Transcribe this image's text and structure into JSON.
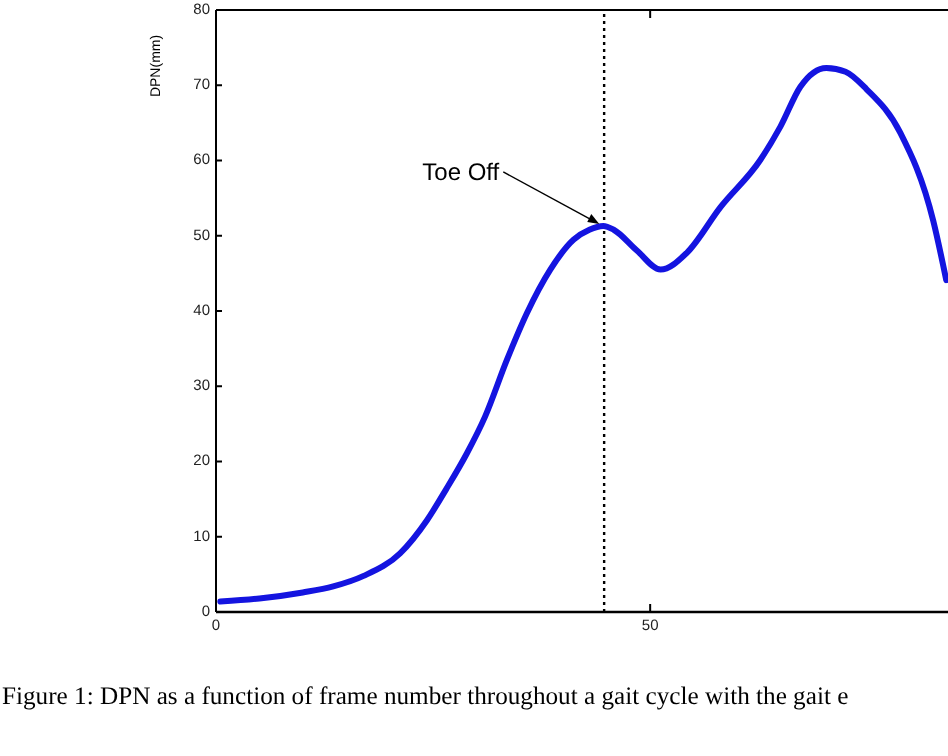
{
  "chart_data": {
    "type": "line",
    "ylabel": "DPN(mm)",
    "xlim": [
      0,
      84.3
    ],
    "ylim": [
      0,
      80
    ],
    "xticks": [
      0,
      50
    ],
    "yticks": [
      0,
      10,
      20,
      30,
      40,
      50,
      60,
      70,
      80
    ],
    "marker": "none",
    "line_style": "solid",
    "series": [
      {
        "color": "#1414e0",
        "x": [
          0.5,
          5,
          10,
          13.5,
          17,
          21.2,
          24.3,
          26.5,
          28.9,
          31,
          33.5,
          35.8,
          38.5,
          41.2,
          43,
          44.6,
          45.8,
          48.5,
          51.2,
          54.2,
          58.1,
          62.7,
          65,
          67.3,
          70.3,
          72.5,
          74.9,
          78.8,
          82.6,
          84.1
        ],
        "values": [
          1.4,
          1.8,
          2.6,
          3.4,
          4.8,
          7.8,
          12.2,
          16.3,
          21.1,
          26,
          33.5,
          39.7,
          45.5,
          49.5,
          50.8,
          51.3,
          50.8,
          48,
          45.5,
          47.7,
          53.8,
          60.1,
          64.5,
          69.8,
          72.3,
          71.8,
          69.5,
          63.7,
          52,
          44.1
        ]
      }
    ],
    "ref_lines": [
      {
        "axis": "x",
        "value": 44.7,
        "color": "#000000",
        "line_style": "dotted"
      }
    ],
    "annotations": [
      {
        "text": "Toe Off",
        "x": 44.6,
        "y": 51.3
      },
      "Figure 1: DPN as a function of frame number throughout a gait cycle with the gait e"
    ]
  }
}
